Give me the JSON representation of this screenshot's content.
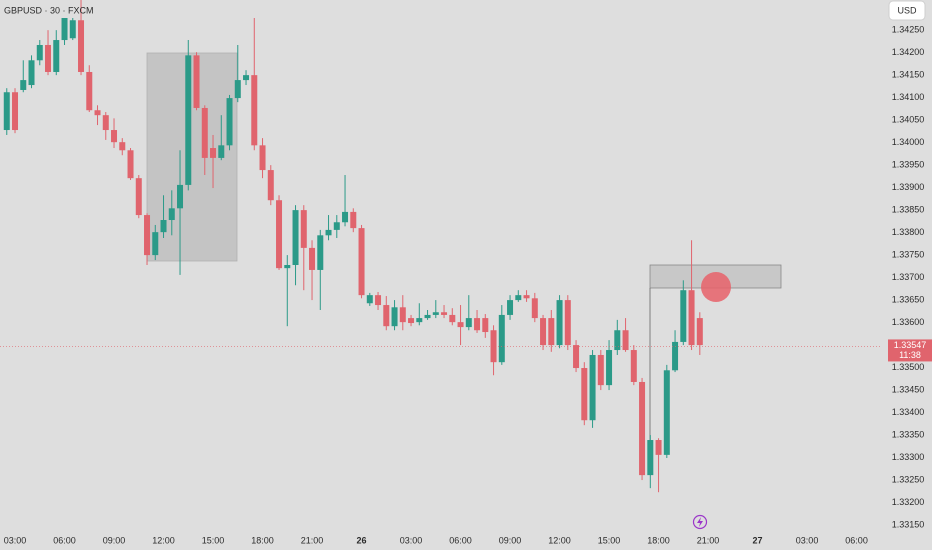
{
  "chart_data": {
    "type": "candlestick",
    "title": "GBPUSD · 30 · FXCM",
    "currency": "USD",
    "last_price": 1.33547,
    "countdown": "11:38",
    "up_color": "#2b9a88",
    "down_color": "#e0646d",
    "grid": false,
    "xlim": [
      2.09,
      55.42
    ],
    "ylim": [
      1.33139,
      1.34317
    ],
    "xticks": [
      {
        "value": 3,
        "label": "03:00"
      },
      {
        "value": 6,
        "label": "06:00"
      },
      {
        "value": 9,
        "label": "09:00"
      },
      {
        "value": 12,
        "label": "12:00"
      },
      {
        "value": 15,
        "label": "15:00"
      },
      {
        "value": 18,
        "label": "18:00"
      },
      {
        "value": 21,
        "label": "21:00"
      },
      {
        "value": 24,
        "label": "26"
      },
      {
        "value": 27,
        "label": "03:00"
      },
      {
        "value": 30,
        "label": "06:00"
      },
      {
        "value": 33,
        "label": "09:00"
      },
      {
        "value": 36,
        "label": "12:00"
      },
      {
        "value": 39,
        "label": "15:00"
      },
      {
        "value": 42,
        "label": "18:00"
      },
      {
        "value": 45,
        "label": "21:00"
      },
      {
        "value": 48,
        "label": "27"
      },
      {
        "value": 51,
        "label": "03:00"
      },
      {
        "value": 54,
        "label": "06:00"
      }
    ],
    "yticks": [
      {
        "value": 1.3315,
        "label": "1.33150"
      },
      {
        "value": 1.332,
        "label": "1.33200"
      },
      {
        "value": 1.3325,
        "label": "1.33250"
      },
      {
        "value": 1.333,
        "label": "1.33300"
      },
      {
        "value": 1.3335,
        "label": "1.33350"
      },
      {
        "value": 1.334,
        "label": "1.33400"
      },
      {
        "value": 1.3345,
        "label": "1.33450"
      },
      {
        "value": 1.335,
        "label": "1.33500"
      },
      {
        "value": 1.3355,
        "label": "1.33550"
      },
      {
        "value": 1.336,
        "label": "1.33600"
      },
      {
        "value": 1.3365,
        "label": "1.33650"
      },
      {
        "value": 1.337,
        "label": "1.33700"
      },
      {
        "value": 1.3375,
        "label": "1.33750"
      },
      {
        "value": 1.338,
        "label": "1.33800"
      },
      {
        "value": 1.3385,
        "label": "1.33850"
      },
      {
        "value": 1.339,
        "label": "1.33900"
      },
      {
        "value": 1.3395,
        "label": "1.33950"
      },
      {
        "value": 1.34,
        "label": "1.34000"
      },
      {
        "value": 1.3405,
        "label": "1.34050"
      },
      {
        "value": 1.341,
        "label": "1.34100"
      },
      {
        "value": 1.3415,
        "label": "1.34150"
      },
      {
        "value": 1.342,
        "label": "1.34200"
      },
      {
        "value": 1.3425,
        "label": "1.34250"
      }
    ],
    "x": [
      2.5,
      3,
      3.5,
      4,
      4.5,
      5,
      5.5,
      6,
      6.5,
      7,
      7.5,
      8,
      8.5,
      9,
      9.5,
      10,
      10.5,
      11,
      11.5,
      12,
      12.5,
      13,
      13.5,
      14,
      14.5,
      15,
      15.5,
      16,
      16.5,
      17,
      17.5,
      18,
      18.5,
      19,
      19.5,
      20,
      20.5,
      21,
      21.5,
      22,
      22.5,
      23,
      23.5,
      24,
      24.5,
      25,
      25.5,
      26,
      26.5,
      27,
      27.5,
      28,
      28.5,
      29,
      29.5,
      30,
      30.5,
      31,
      31.5,
      32,
      32.5,
      33,
      33.5,
      34,
      34.5,
      35,
      35.5,
      36,
      36.5,
      37,
      37.5,
      38,
      38.5,
      39,
      39.5,
      40,
      40.5,
      41,
      41.5,
      42,
      42.5,
      43,
      43.5,
      44,
      44.5
    ],
    "open": [
      1.34028,
      1.34112,
      1.34117,
      1.34128,
      1.34183,
      1.34217,
      1.34157,
      1.34228,
      1.34232,
      1.34272,
      1.34157,
      1.34072,
      1.34061,
      1.34028,
      1.34001,
      1.33983,
      1.33921,
      1.33839,
      1.3375,
      1.33801,
      1.33828,
      1.33854,
      1.33906,
      1.34194,
      1.34077,
      1.33988,
      1.33966,
      1.33994,
      1.34099,
      1.34139,
      1.3415,
      1.33994,
      1.33939,
      1.33872,
      1.33721,
      1.33728,
      1.3385,
      1.33766,
      1.33717,
      1.33794,
      1.33806,
      1.33823,
      1.33846,
      1.3381,
      1.33643,
      1.33661,
      1.33639,
      1.33592,
      1.33634,
      1.3361,
      1.33601,
      1.3361,
      1.33617,
      1.33623,
      1.33617,
      1.33601,
      1.3359,
      1.3361,
      1.3361,
      1.33583,
      1.33512,
      1.33617,
      1.3365,
      1.33661,
      1.33654,
      1.3361,
      1.3361,
      1.3355,
      1.3365,
      1.3355,
      1.33499,
      1.33383,
      1.33528,
      1.33461,
      1.33539,
      1.33583,
      1.33539,
      1.33468,
      1.33261,
      1.33339,
      1.33306,
      1.33494,
      1.33557,
      1.33672,
      1.3361
    ],
    "high": [
      1.34121,
      1.34121,
      1.34183,
      1.34194,
      1.34228,
      1.3425,
      1.3425,
      1.34306,
      1.34299,
      1.34317,
      1.34172,
      1.34083,
      1.34068,
      1.34054,
      1.3401,
      1.33988,
      1.33928,
      1.33843,
      1.33817,
      1.33883,
      1.33894,
      1.33983,
      1.34228,
      1.34201,
      1.34083,
      1.34017,
      1.34061,
      1.34106,
      1.34217,
      1.34161,
      1.34277,
      1.3401,
      1.3395,
      1.33883,
      1.3375,
      1.33861,
      1.33861,
      1.33783,
      1.33806,
      1.33839,
      1.33839,
      1.33928,
      1.33854,
      1.33817,
      1.33666,
      1.33668,
      1.33659,
      1.3365,
      1.33661,
      1.33617,
      1.33643,
      1.33628,
      1.3365,
      1.33639,
      1.33632,
      1.33639,
      1.33661,
      1.33628,
      1.33619,
      1.33594,
      1.33639,
      1.33661,
      1.33672,
      1.33672,
      1.33666,
      1.33617,
      1.33628,
      1.33661,
      1.33661,
      1.33561,
      1.33512,
      1.33539,
      1.33539,
      1.33561,
      1.33606,
      1.3361,
      1.3355,
      1.33477,
      1.3335,
      1.33343,
      1.33506,
      1.33583,
      1.33694,
      1.33783,
      1.33623
    ],
    "low": [
      1.34017,
      1.34021,
      1.34112,
      1.34121,
      1.34172,
      1.3415,
      1.3415,
      1.34217,
      1.34228,
      1.3415,
      1.34068,
      1.34039,
      1.34006,
      1.33988,
      1.33972,
      1.33917,
      1.33832,
      1.33728,
      1.33739,
      1.33788,
      1.33794,
      1.33706,
      1.33894,
      1.34072,
      1.33928,
      1.33899,
      1.33961,
      1.33983,
      1.3409,
      1.34128,
      1.33983,
      1.33921,
      1.33861,
      1.33717,
      1.33592,
      1.33683,
      1.33672,
      1.3365,
      1.33628,
      1.33783,
      1.33788,
      1.33814,
      1.33801,
      1.33654,
      1.33637,
      1.33628,
      1.33583,
      1.33583,
      1.33583,
      1.33592,
      1.33594,
      1.33606,
      1.3361,
      1.3361,
      1.33594,
      1.3355,
      1.33583,
      1.33577,
      1.33566,
      1.33483,
      1.33506,
      1.33606,
      1.33646,
      1.33646,
      1.33601,
      1.33539,
      1.33535,
      1.33543,
      1.33539,
      1.3349,
      1.33372,
      1.33366,
      1.3345,
      1.3345,
      1.33528,
      1.33535,
      1.33461,
      1.3325,
      1.33232,
      1.33223,
      1.33299,
      1.3349,
      1.3355,
      1.33539,
      1.33528
    ],
    "close": [
      1.34112,
      1.34028,
      1.34139,
      1.34183,
      1.34217,
      1.34157,
      1.34228,
      1.3429,
      1.34272,
      1.34157,
      1.34072,
      1.34061,
      1.34028,
      1.34001,
      1.33983,
      1.33921,
      1.33839,
      1.3375,
      1.33801,
      1.33828,
      1.33854,
      1.33906,
      1.34194,
      1.34077,
      1.33966,
      1.33966,
      1.33994,
      1.34099,
      1.34139,
      1.3415,
      1.33994,
      1.33939,
      1.33872,
      1.33721,
      1.33728,
      1.3385,
      1.33766,
      1.33717,
      1.33794,
      1.33806,
      1.33823,
      1.33846,
      1.3381,
      1.33661,
      1.33661,
      1.33639,
      1.33592,
      1.33634,
      1.33601,
      1.33599,
      1.3361,
      1.33617,
      1.33623,
      1.33617,
      1.33601,
      1.3359,
      1.3361,
      1.33583,
      1.33579,
      1.33512,
      1.33617,
      1.3365,
      1.33661,
      1.33654,
      1.3361,
      1.3355,
      1.3355,
      1.3365,
      1.3355,
      1.33499,
      1.33383,
      1.33528,
      1.33461,
      1.33539,
      1.33583,
      1.33539,
      1.33468,
      1.33261,
      1.33339,
      1.33306,
      1.33494,
      1.33557,
      1.33672,
      1.3355,
      1.3355
    ]
  }
}
